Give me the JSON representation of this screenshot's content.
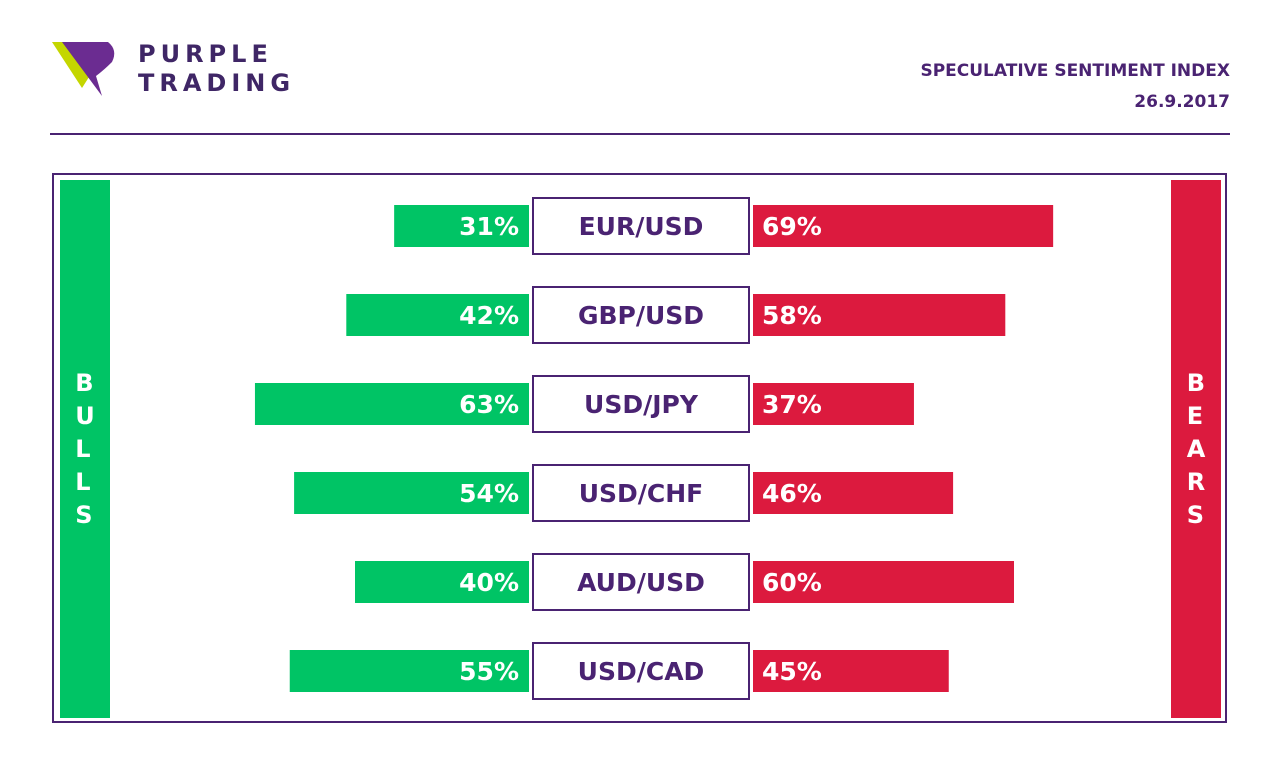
{
  "brand": {
    "line1": "PURPLE",
    "line2": "TRADING",
    "colors": {
      "purple": "#4a2372",
      "lime": "#c4d600",
      "violet": "#6b2c91"
    }
  },
  "header": {
    "title": "SPECULATIVE SENTIMENT INDEX",
    "date": "26.9.2017"
  },
  "sides": {
    "bulls": "BULLS",
    "bears": "BEARS"
  },
  "colors": {
    "bulls": "#00c465",
    "bears": "#dc1a3e",
    "label_border": "#4a2372",
    "label_text": "#4a2372"
  },
  "chart_data": {
    "type": "bar",
    "orientation": "horizontal-diverging",
    "title": "SPECULATIVE SENTIMENT INDEX",
    "categories": [
      "EUR/USD",
      "GBP/USD",
      "USD/JPY",
      "USD/CHF",
      "AUD/USD",
      "USD/CAD"
    ],
    "series": [
      {
        "name": "BULLS",
        "values": [
          31,
          42,
          63,
          54,
          40,
          55
        ],
        "color": "#00c465",
        "labels": [
          "31%",
          "42%",
          "63%",
          "54%",
          "40%",
          "55%"
        ]
      },
      {
        "name": "BEARS",
        "values": [
          69,
          58,
          37,
          46,
          60,
          45
        ],
        "color": "#dc1a3e",
        "labels": [
          "69%",
          "58%",
          "37%",
          "46%",
          "60%",
          "45%"
        ]
      }
    ],
    "unit": "%",
    "xlim": [
      0,
      100
    ]
  }
}
